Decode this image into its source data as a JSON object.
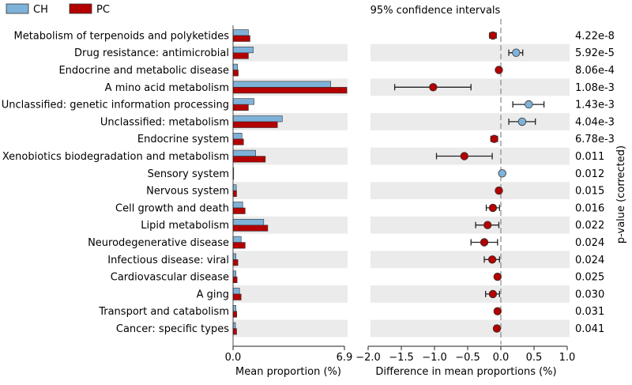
{
  "chart_data": {
    "type": "extended-error-bar",
    "title": "95% confidence intervals",
    "legend": [
      {
        "name": "CH",
        "color": "#7fb2d9"
      },
      {
        "name": "PC",
        "color": "#b30000"
      }
    ],
    "legend_position": "top-left",
    "categories": [
      "Metabolism of terpenoids and polyketides",
      "Drug resistance: antimicrobial",
      "Endocrine and metabolic disease",
      "A mino acid metabolism",
      "Unclassified: genetic information processing",
      "Unclassified: metabolism",
      "Endocrine system",
      "Xenobiotics biodegradation and metabolism",
      "Sensory system",
      "Nervous system",
      "Cell growth and death",
      "Lipid metabolism",
      "Neurodegenerative disease",
      "Infectious disease: viral",
      "Cardiovascular disease",
      "A ging",
      "Transport and catabolism",
      "Cancer: specific types"
    ],
    "series": [
      {
        "name": "CH",
        "values": [
          0.95,
          1.25,
          0.28,
          6.05,
          1.3,
          3.05,
          0.55,
          1.4,
          0.03,
          0.2,
          0.6,
          1.9,
          0.5,
          0.18,
          0.18,
          0.4,
          0.18,
          0.15
        ]
      },
      {
        "name": "PC",
        "values": [
          1.05,
          0.95,
          0.32,
          7.05,
          0.95,
          2.75,
          0.65,
          2.0,
          0.01,
          0.22,
          0.75,
          2.15,
          0.75,
          0.3,
          0.25,
          0.5,
          0.23,
          0.22
        ]
      }
    ],
    "bar_xlabel": "Mean proportion (%)",
    "bar_xticks": [
      "0.0",
      "6.9"
    ],
    "bar_xlim": [
      0,
      6.9
    ],
    "diff": [
      -0.12,
      0.23,
      -0.03,
      -1.02,
      0.42,
      0.32,
      -0.1,
      -0.55,
      0.02,
      -0.03,
      -0.12,
      -0.2,
      -0.25,
      -0.13,
      -0.05,
      -0.12,
      -0.05,
      -0.06
    ],
    "diff_low": [
      -0.17,
      0.12,
      -0.06,
      -1.6,
      0.18,
      0.12,
      -0.15,
      -0.97,
      0.0,
      -0.06,
      -0.22,
      -0.38,
      -0.45,
      -0.25,
      -0.08,
      -0.23,
      -0.08,
      -0.1
    ],
    "diff_high": [
      -0.07,
      0.33,
      0.0,
      -0.45,
      0.65,
      0.52,
      -0.05,
      -0.13,
      0.04,
      0.0,
      -0.02,
      -0.03,
      -0.05,
      -0.02,
      -0.02,
      -0.02,
      -0.02,
      -0.02
    ],
    "diff_xlabel": "Difference in mean proportions (%)",
    "diff_xticks": [
      "−2.0",
      "−1.5",
      "−1.0",
      "−0.5",
      "0.0",
      "0.5",
      "1.0"
    ],
    "diff_xlim": [
      -2.0,
      1.0
    ],
    "p_values": [
      "4.22e-8",
      "5.92e-5",
      "8.06e-4",
      "1.08e-3",
      "1.43e-3",
      "4.04e-3",
      "6.78e-3",
      "0.011",
      "0.012",
      "0.015",
      "0.016",
      "0.022",
      "0.024",
      "0.024",
      "0.025",
      "0.030",
      "0.031",
      "0.041"
    ],
    "p_label": "p-value (corrected)"
  }
}
